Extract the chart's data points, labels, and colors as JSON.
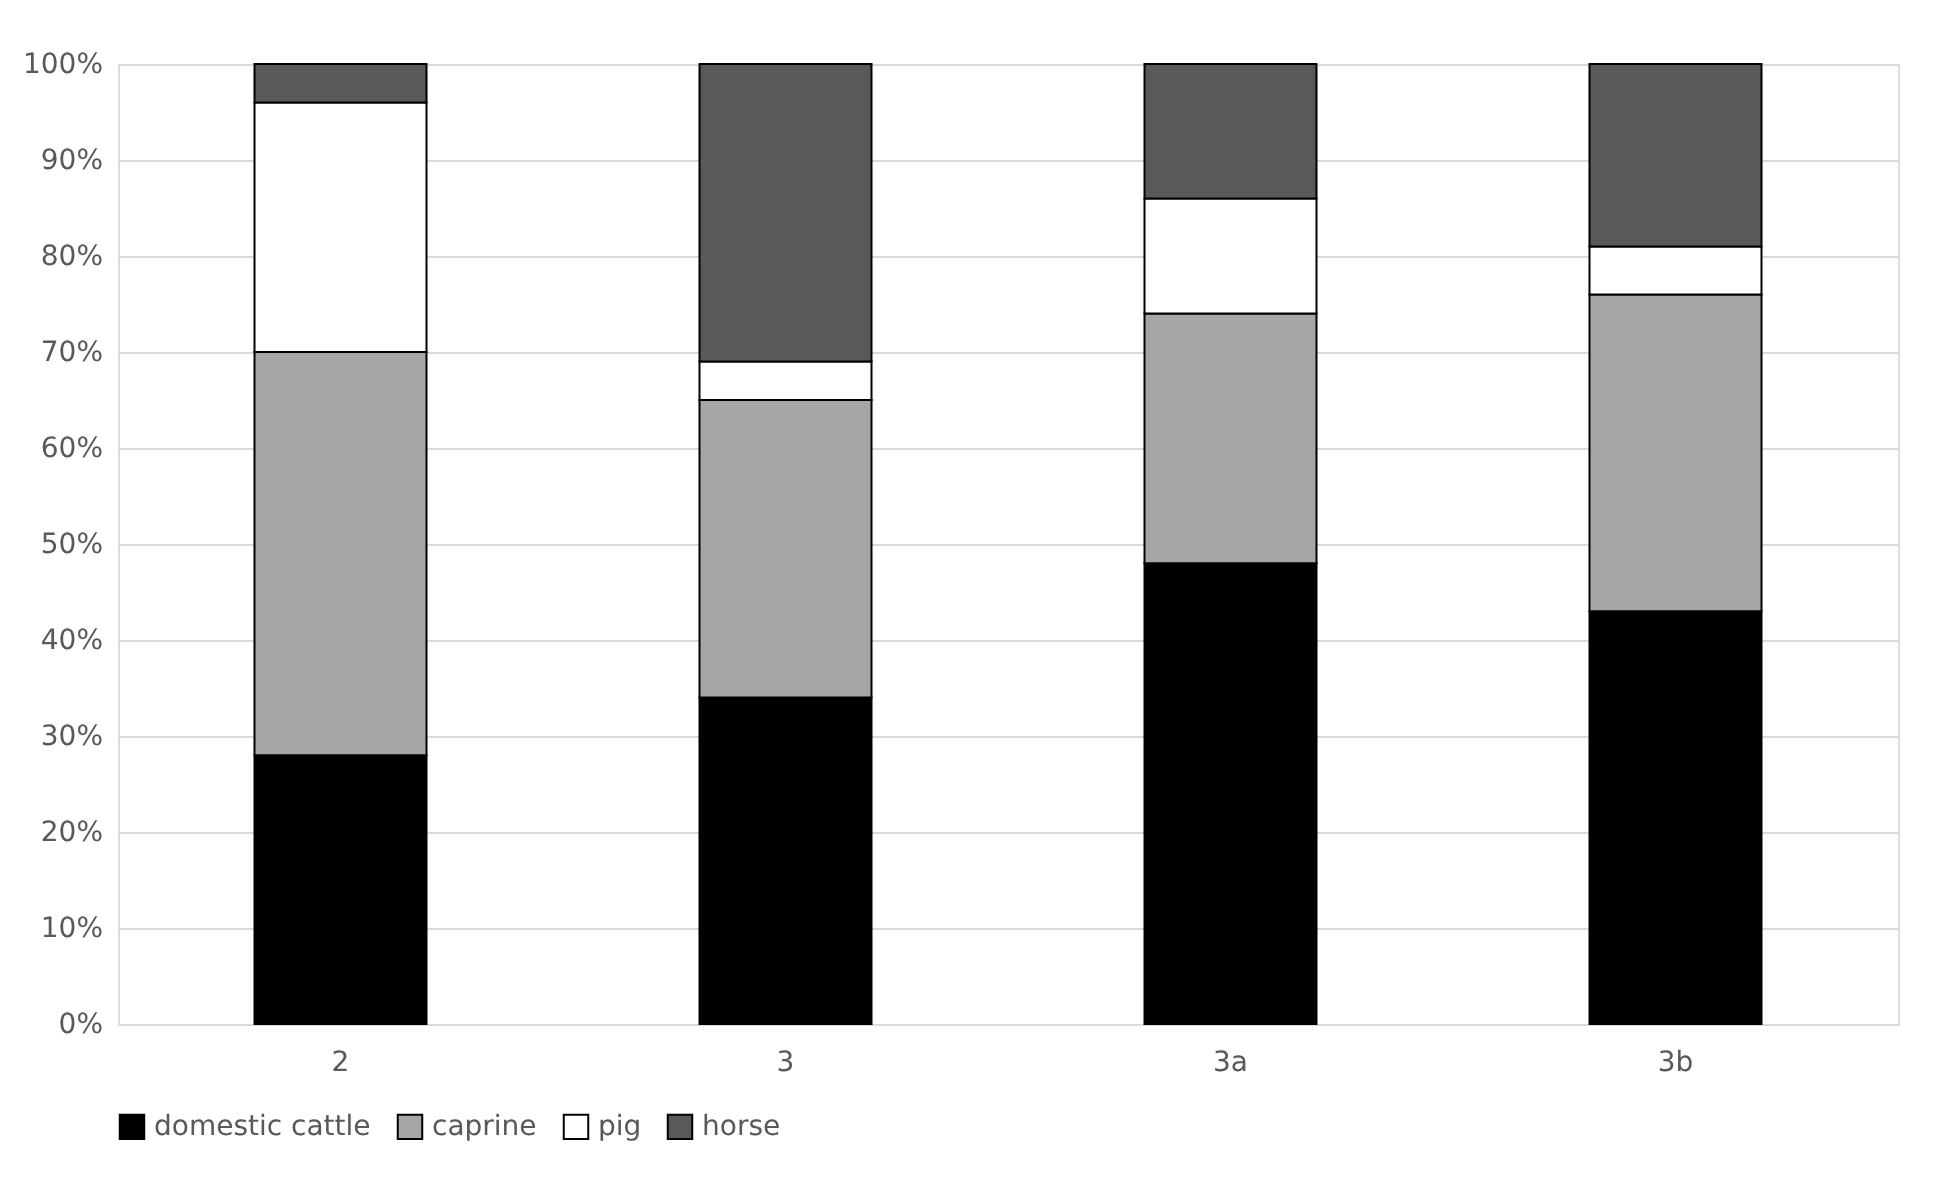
{
  "chart_data": {
    "type": "bar",
    "stacked": true,
    "categories": [
      "2",
      "3",
      "3a",
      "3b"
    ],
    "series": [
      {
        "name": "domestic cattle",
        "color": "#000000",
        "values": [
          28,
          34,
          48,
          43
        ]
      },
      {
        "name": "caprine",
        "color": "#a6a6a6",
        "values": [
          42,
          31,
          26,
          33
        ]
      },
      {
        "name": "pig",
        "color": "#ffffff",
        "values": [
          26,
          4,
          12,
          5
        ]
      },
      {
        "name": "horse",
        "color": "#595959",
        "values": [
          4,
          31,
          14,
          19
        ]
      }
    ],
    "ylim": [
      0,
      100
    ],
    "yticks": [
      {
        "value": 0,
        "label": "0%"
      },
      {
        "value": 10,
        "label": "10%"
      },
      {
        "value": 20,
        "label": "20%"
      },
      {
        "value": 30,
        "label": "30%"
      },
      {
        "value": 40,
        "label": "40%"
      },
      {
        "value": 50,
        "label": "50%"
      },
      {
        "value": 60,
        "label": "60%"
      },
      {
        "value": 70,
        "label": "70%"
      },
      {
        "value": 80,
        "label": "80%"
      },
      {
        "value": 90,
        "label": "90%"
      },
      {
        "value": 100,
        "label": "100%"
      }
    ],
    "grid": "y",
    "legend": "bottom"
  }
}
